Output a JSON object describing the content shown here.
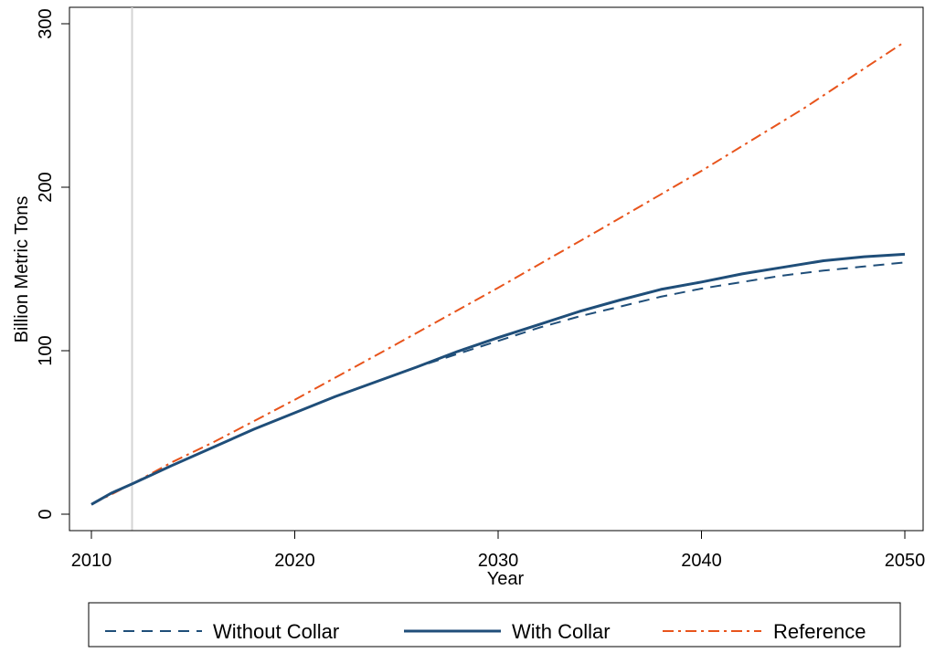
{
  "chart_data": {
    "type": "line",
    "title": "",
    "xlabel": "Year",
    "ylabel": "Billion Metric Tons",
    "xlim": [
      2010,
      2050
    ],
    "ylim": [
      0,
      300
    ],
    "x_ticks": [
      2010,
      2020,
      2030,
      2040,
      2050
    ],
    "y_ticks": [
      0,
      100,
      200,
      300
    ],
    "reference_line_x": 2012,
    "grid": false,
    "legend_position": "bottom",
    "series": [
      {
        "name": "Without Collar",
        "style": "dashed",
        "color": "#1f4e79",
        "x": [
          2010,
          2011,
          2012,
          2014,
          2016,
          2018,
          2020,
          2022,
          2024,
          2026,
          2028,
          2030,
          2032,
          2034,
          2036,
          2038,
          2040,
          2042,
          2044,
          2046,
          2048,
          2050
        ],
        "y": [
          6,
          13,
          18.5,
          30,
          41,
          52,
          62,
          72,
          81,
          90,
          98,
          106,
          114,
          121,
          127,
          133,
          138,
          142,
          146,
          149,
          151.5,
          154
        ]
      },
      {
        "name": "With Collar",
        "style": "solid",
        "color": "#1f4e79",
        "x": [
          2010,
          2011,
          2012,
          2014,
          2016,
          2018,
          2020,
          2022,
          2024,
          2026,
          2028,
          2030,
          2032,
          2034,
          2036,
          2038,
          2040,
          2042,
          2044,
          2046,
          2048,
          2050
        ],
        "y": [
          6,
          13,
          18.5,
          30,
          41,
          52,
          62,
          72,
          81,
          90,
          99.5,
          108,
          116,
          124,
          131,
          137.5,
          142,
          147,
          151,
          155,
          157.5,
          159
        ]
      },
      {
        "name": "Reference",
        "style": "dashdot",
        "color": "#e8541c",
        "x": [
          2010,
          2012,
          2014,
          2016,
          2018,
          2020,
          2025,
          2030,
          2035,
          2040,
          2045,
          2050
        ],
        "y": [
          6,
          18.5,
          32,
          44,
          57,
          70,
          104,
          138.5,
          174,
          210,
          248,
          289
        ]
      }
    ]
  },
  "x_tick_labels": [
    "2010",
    "2020",
    "2030",
    "2040",
    "2050"
  ],
  "y_tick_labels": [
    "0",
    "100",
    "200",
    "300"
  ],
  "axis_titles": {
    "x": "Year",
    "y": "Billion Metric Tons"
  },
  "legend": {
    "items": [
      "Without Collar",
      "With Collar",
      "Reference"
    ]
  }
}
